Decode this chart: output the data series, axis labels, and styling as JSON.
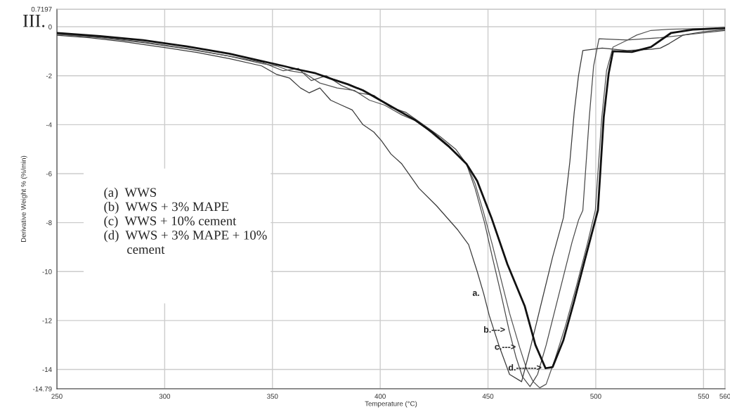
{
  "chart_data": {
    "type": "line",
    "xlabel": "Temperature (°C)",
    "ylabel": "Derivative Weight % (%/min)",
    "xlim": [
      250,
      560
    ],
    "xticks": [
      250,
      300,
      350,
      400,
      450,
      500,
      550,
      560
    ],
    "ylim": [
      -14.79,
      0.7197
    ],
    "yticks": [
      0.7197,
      0,
      -2,
      -4,
      -6,
      -8,
      -10,
      -12,
      -14,
      -14.79
    ],
    "grid": true,
    "line_style": "solid",
    "marker": "none",
    "legend": false,
    "series": [
      {
        "color": "#3a3a3a",
        "x": [
          250,
          265,
          280,
          300,
          315,
          330,
          345,
          352,
          358,
          363,
          367,
          372,
          377,
          382,
          387,
          392,
          397,
          400.5,
          405,
          410,
          418,
          426,
          436,
          441,
          445,
          448,
          450.6,
          455,
          460,
          465.6,
          470,
          475,
          480,
          485,
          488,
          490,
          492,
          494,
          503,
          514.5,
          525.6,
          530,
          534,
          540.5,
          550,
          560
        ],
        "values": [
          -0.35,
          -0.45,
          -0.6,
          -0.85,
          -1.05,
          -1.3,
          -1.6,
          -1.95,
          -2.1,
          -2.5,
          -2.7,
          -2.5,
          -3.0,
          -3.2,
          -3.4,
          -4.0,
          -4.3,
          -4.65,
          -5.2,
          -5.6,
          -6.6,
          -7.3,
          -8.3,
          -8.9,
          -10.0,
          -10.9,
          -11.8,
          -13.0,
          -14.2,
          -14.5,
          -13.0,
          -11.2,
          -9.4,
          -7.8,
          -5.5,
          -3.5,
          -2.0,
          -0.97,
          -0.87,
          -0.97,
          -0.92,
          -0.87,
          -0.69,
          -0.34,
          -0.2,
          -0.11
        ]
      },
      {
        "color": "#4a4a4a",
        "x": [
          250,
          270,
          290,
          310,
          330,
          345,
          355,
          362,
          368,
          375,
          382,
          390,
          397,
          405,
          412,
          420,
          428,
          435,
          440,
          444,
          448.4,
          452,
          456,
          459.8,
          463,
          466,
          469.5,
          473,
          477,
          481,
          485,
          489,
          492,
          494,
          497,
          499,
          501.5,
          514.5,
          530,
          545,
          560
        ],
        "values": [
          -0.3,
          -0.45,
          -0.65,
          -0.9,
          -1.2,
          -1.45,
          -1.8,
          -1.7,
          -2.2,
          -2.0,
          -2.4,
          -2.7,
          -2.8,
          -3.3,
          -3.5,
          -4.0,
          -4.5,
          -5.0,
          -5.6,
          -6.6,
          -8.0,
          -9.4,
          -10.9,
          -12.4,
          -13.5,
          -14.3,
          -14.7,
          -14.2,
          -13.0,
          -11.6,
          -10.2,
          -8.8,
          -7.9,
          -7.5,
          -3.7,
          -1.6,
          -0.49,
          -0.54,
          -0.45,
          -0.3,
          -0.15
        ]
      },
      {
        "color": "#555555",
        "x": [
          250,
          270,
          290,
          310,
          330,
          345,
          352,
          358,
          365,
          372,
          380,
          388,
          395,
          402,
          410,
          418,
          426,
          433,
          440,
          444,
          448,
          452,
          456,
          460,
          464.7,
          468,
          471,
          474,
          477,
          481,
          486,
          491,
          496,
          499.8,
          502.8,
          505,
          508,
          514.5,
          519,
          525.6,
          534,
          545,
          560
        ],
        "values": [
          -0.3,
          -0.42,
          -0.62,
          -0.88,
          -1.2,
          -1.5,
          -1.6,
          -1.8,
          -1.9,
          -2.3,
          -2.5,
          -2.6,
          -3.0,
          -3.2,
          -3.6,
          -3.9,
          -4.5,
          -5.0,
          -5.6,
          -6.4,
          -7.6,
          -8.9,
          -10.3,
          -11.7,
          -13.1,
          -14.0,
          -14.5,
          -14.75,
          -14.6,
          -13.6,
          -12.2,
          -10.6,
          -8.9,
          -7.5,
          -3.7,
          -1.8,
          -0.83,
          -0.55,
          -0.34,
          -0.15,
          -0.1,
          -0.08,
          -0.05
        ]
      },
      {
        "color": "#111111",
        "x": [
          250,
          270,
          290,
          310,
          330,
          345,
          355,
          362,
          370,
          378,
          385,
          392,
          400,
          408,
          416,
          424,
          432,
          440,
          445,
          451.6,
          459,
          467,
          472,
          476.7,
          480,
          485,
          490,
          495,
          501,
          503.7,
          506,
          508,
          516.8,
          525.6,
          535,
          545,
          560
        ],
        "values": [
          -0.25,
          -0.38,
          -0.55,
          -0.8,
          -1.1,
          -1.4,
          -1.6,
          -1.75,
          -1.9,
          -2.15,
          -2.35,
          -2.6,
          -3.0,
          -3.4,
          -3.8,
          -4.3,
          -4.9,
          -5.6,
          -6.3,
          -7.8,
          -9.7,
          -11.4,
          -13.0,
          -13.95,
          -13.9,
          -12.8,
          -11.2,
          -9.5,
          -7.5,
          -3.7,
          -1.9,
          -1.0,
          -1.03,
          -0.83,
          -0.25,
          -0.12,
          -0.05
        ]
      }
    ],
    "annotations": [
      "III.",
      "(a)  WWS",
      "(b)  WWS + 3% MAPE",
      "(c)  WWS + 10% cement",
      "(d)  WWS + 3% MAPE + 10%\n       cement",
      {
        "text": "a.",
        "x": 448,
        "y": -10.9
      },
      {
        "text": "b.--->",
        "x": 459.8,
        "y": -12.4
      },
      {
        "text": "c.--->",
        "x": 464.7,
        "y": -13.1
      },
      {
        "text": "d.------->",
        "x": 476.7,
        "y": -13.95
      }
    ]
  }
}
